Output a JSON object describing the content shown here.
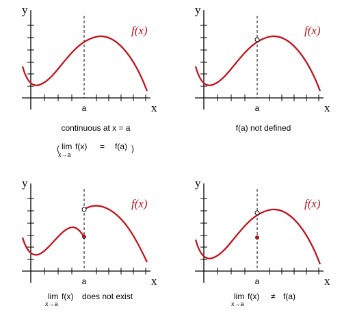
{
  "panels": [
    {
      "y_label": "y",
      "x_label": "x",
      "a_label": "a",
      "f_label": "f(x)",
      "caption": "continuous at x = a",
      "formula": {
        "lim": "lim",
        "sub": "x→a",
        "left": "f(x)",
        "op": "=",
        "right": "f(a)"
      }
    },
    {
      "y_label": "y",
      "x_label": "x",
      "a_label": "a",
      "f_label": "f(x)",
      "caption": "f(a) not defined"
    },
    {
      "y_label": "y",
      "x_label": "x",
      "a_label": "a",
      "f_label": "f(x)",
      "formula": {
        "lim": "lim",
        "sub": "x→a",
        "left": "f(x)",
        "tail": "does not exist"
      }
    },
    {
      "y_label": "y",
      "x_label": "x",
      "a_label": "a",
      "f_label": "f(x)",
      "formula": {
        "lim": "lim",
        "sub": "x→a",
        "left": "f(x)",
        "op": "≠",
        "right": "f(a)"
      }
    }
  ]
}
